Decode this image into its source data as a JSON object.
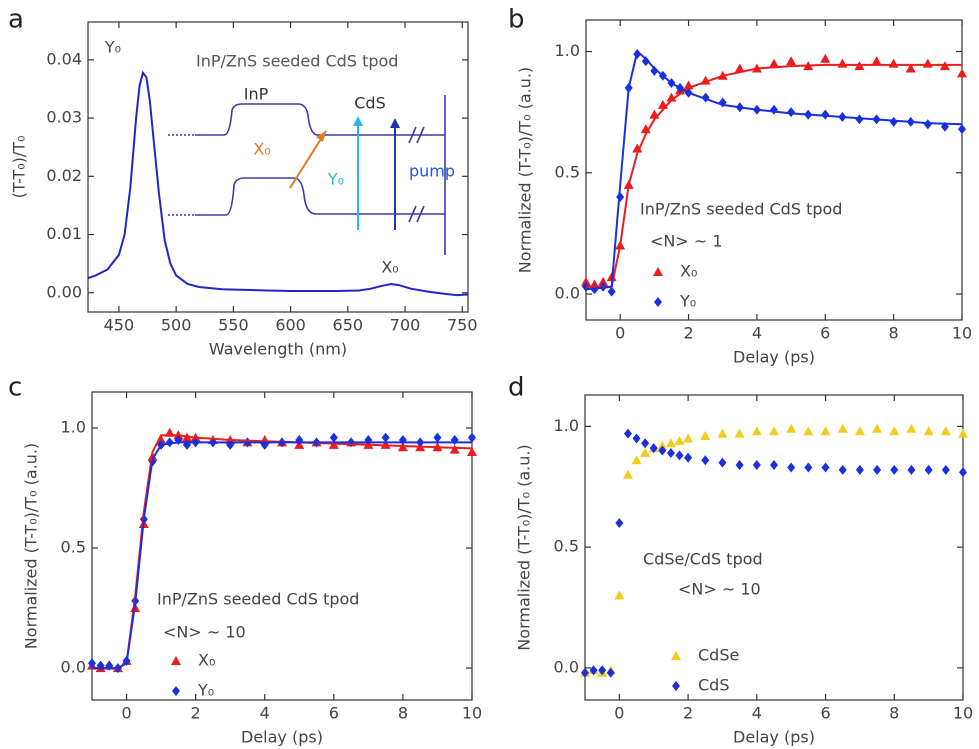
{
  "chart_data": [
    {
      "type": "line",
      "panel_label": "a",
      "x_label": "Wavelength (nm)",
      "y_label": "(T-T₀)/T₀",
      "annotations": [
        "Y₀",
        "X₀",
        "InP/ZnS seeded CdS tpod",
        "InP",
        "CdS",
        "X₀",
        "Y₀",
        "pump"
      ],
      "x": [
        423,
        430,
        440,
        450,
        455,
        460,
        465,
        468,
        471,
        474,
        477,
        480,
        485,
        490,
        495,
        500,
        510,
        520,
        540,
        560,
        580,
        600,
        620,
        640,
        660,
        670,
        680,
        688,
        695,
        705,
        720,
        735,
        745,
        755
      ],
      "series": [
        {
          "color": "#2323c8",
          "values": [
            0.0025,
            0.003,
            0.004,
            0.0065,
            0.01,
            0.018,
            0.03,
            0.0355,
            0.0378,
            0.037,
            0.033,
            0.027,
            0.017,
            0.009,
            0.005,
            0.003,
            0.0015,
            0.001,
            0.0006,
            0.0005,
            0.0004,
            0.0003,
            0.0003,
            0.0003,
            0.0004,
            0.0007,
            0.0012,
            0.0015,
            0.0013,
            0.0007,
            0.0002,
            -0.0002,
            -0.0004,
            -0.0003
          ]
        }
      ],
      "xlim": [
        423,
        755
      ],
      "ylim": [
        -0.0033,
        0.0465
      ],
      "xticks": [
        450,
        500,
        550,
        600,
        650,
        700,
        750
      ],
      "yticks": [
        {
          "value": 0,
          "label": "0.00"
        },
        {
          "value": 0.01,
          "label": "0.01"
        },
        {
          "value": 0.02,
          "label": "0.02"
        },
        {
          "value": 0.03,
          "label": "0.03"
        },
        {
          "value": 0.04,
          "label": "0.04"
        }
      ]
    },
    {
      "type": "scatter",
      "panel_label": "b",
      "x_label": "Delay (ps)",
      "y_label": "Normalized (T-T₀)/T₀ (a.u.)",
      "annotations": [
        "InP/ZnS seeded CdS tpod",
        "<N> ~ 1"
      ],
      "x": [
        -1,
        -0.75,
        -0.5,
        -0.25,
        0,
        0.25,
        0.5,
        0.75,
        1,
        1.25,
        1.5,
        1.75,
        2,
        2.5,
        3,
        3.5,
        4,
        4.5,
        5,
        5.5,
        6,
        6.5,
        7,
        7.5,
        8,
        8.5,
        9,
        9.5,
        10
      ],
      "series": [
        {
          "name": "X₀",
          "color": "#ee1c1c",
          "marker": "triangle",
          "values": [
            0.05,
            0.04,
            0.05,
            0.07,
            0.2,
            0.45,
            0.6,
            0.68,
            0.74,
            0.78,
            0.81,
            0.84,
            0.86,
            0.88,
            0.9,
            0.93,
            0.93,
            0.95,
            0.96,
            0.94,
            0.97,
            0.95,
            0.94,
            0.96,
            0.95,
            0.93,
            0.95,
            0.94,
            0.91
          ]
        },
        {
          "name": "Y₀",
          "color": "#1a2fe0",
          "marker": "diamond",
          "values": [
            0.03,
            0.02,
            0.03,
            0.01,
            0.4,
            0.85,
            0.99,
            0.96,
            0.92,
            0.9,
            0.87,
            0.85,
            0.83,
            0.81,
            0.79,
            0.77,
            0.76,
            0.76,
            0.75,
            0.74,
            0.74,
            0.73,
            0.72,
            0.72,
            0.71,
            0.71,
            0.7,
            0.69,
            0.68
          ]
        }
      ],
      "fits": [
        {
          "color": "#ee1c1c",
          "x": [
            -1,
            -0.25,
            0,
            0.25,
            0.5,
            0.75,
            1,
            1.5,
            2,
            3,
            4,
            5,
            6,
            7,
            8,
            9,
            10
          ],
          "values": [
            0.03,
            0.03,
            0.2,
            0.45,
            0.58,
            0.66,
            0.72,
            0.8,
            0.85,
            0.9,
            0.93,
            0.94,
            0.945,
            0.945,
            0.945,
            0.945,
            0.945
          ]
        },
        {
          "color": "#1a2fe0",
          "x": [
            -1,
            -0.25,
            0,
            0.25,
            0.5,
            0.75,
            1,
            1.5,
            2,
            3,
            4,
            5,
            6,
            7,
            8,
            9,
            10
          ],
          "values": [
            0.02,
            0.03,
            0.45,
            0.85,
            1.0,
            0.97,
            0.93,
            0.87,
            0.83,
            0.78,
            0.76,
            0.745,
            0.735,
            0.725,
            0.715,
            0.705,
            0.7
          ]
        }
      ],
      "xlim": [
        -1,
        10
      ],
      "ylim": [
        -0.107,
        1.13
      ],
      "xticks": [
        0,
        2,
        4,
        6,
        8,
        10
      ],
      "yticks": [
        {
          "value": 0,
          "label": "0.0"
        },
        {
          "value": 0.5,
          "label": "0.5"
        },
        {
          "value": 1,
          "label": "1.0"
        }
      ]
    },
    {
      "type": "scatter",
      "panel_label": "c",
      "x_label": "Delay (ps)",
      "y_label": "Normalized (T-T₀)/T₀ (a.u.)",
      "annotations": [
        "InP/ZnS seeded CdS tpod",
        "<N> ~ 10"
      ],
      "x": [
        -1,
        -0.75,
        -0.5,
        -0.25,
        0,
        0.25,
        0.5,
        0.75,
        1,
        1.25,
        1.5,
        1.75,
        2,
        2.5,
        3,
        3.5,
        4,
        4.5,
        5,
        5.5,
        6,
        6.5,
        7,
        7.5,
        8,
        8.5,
        9,
        9.5,
        10
      ],
      "series": [
        {
          "name": "X₀",
          "color": "#ee1c1c",
          "marker": "triangle",
          "values": [
            0.01,
            0,
            0.01,
            0,
            0.03,
            0.25,
            0.6,
            0.88,
            0.95,
            0.98,
            0.97,
            0.96,
            0.96,
            0.95,
            0.95,
            0.94,
            0.95,
            0.94,
            0.93,
            0.94,
            0.93,
            0.94,
            0.93,
            0.93,
            0.92,
            0.92,
            0.92,
            0.91,
            0.9
          ]
        },
        {
          "name": "Y₀",
          "color": "#1a2fe0",
          "marker": "diamond",
          "values": [
            0.02,
            0.01,
            0.01,
            0,
            0.03,
            0.28,
            0.62,
            0.86,
            0.93,
            0.94,
            0.95,
            0.93,
            0.94,
            0.94,
            0.93,
            0.94,
            0.93,
            0.94,
            0.95,
            0.94,
            0.96,
            0.94,
            0.95,
            0.96,
            0.95,
            0.94,
            0.96,
            0.95,
            0.96
          ]
        }
      ],
      "fits": [
        {
          "color": "#ee1c1c",
          "x": [
            -1,
            -0.25,
            0,
            0.25,
            0.5,
            0.75,
            1,
            1.5,
            2,
            3,
            4,
            5,
            6,
            7,
            8,
            9,
            10
          ],
          "values": [
            0,
            0,
            0.02,
            0.3,
            0.65,
            0.9,
            0.97,
            0.97,
            0.96,
            0.95,
            0.945,
            0.94,
            0.935,
            0.93,
            0.925,
            0.92,
            0.915
          ]
        },
        {
          "color": "#1a2fe0",
          "x": [
            -1,
            -0.25,
            0,
            0.25,
            0.5,
            0.75,
            1,
            1.5,
            2,
            3,
            4,
            5,
            6,
            7,
            8,
            9,
            10
          ],
          "values": [
            0,
            0,
            0.02,
            0.27,
            0.62,
            0.87,
            0.93,
            0.94,
            0.94,
            0.94,
            0.94,
            0.94,
            0.94,
            0.94,
            0.94,
            0.94,
            0.94
          ]
        }
      ],
      "xlim": [
        -1,
        10
      ],
      "ylim": [
        -0.133,
        1.15
      ],
      "xticks": [
        0,
        2,
        4,
        6,
        8,
        10
      ],
      "yticks": [
        {
          "value": 0,
          "label": "0.0"
        },
        {
          "value": 0.5,
          "label": "0.5"
        },
        {
          "value": 1,
          "label": "1.0"
        }
      ]
    },
    {
      "type": "scatter",
      "panel_label": "d",
      "x_label": "Delay (ps)",
      "y_label": "Normalized (T-T₀)/T₀ (a.u.)",
      "annotations": [
        "CdSe/CdS tpod",
        "<N> ~ 10"
      ],
      "x": [
        -1,
        -0.75,
        -0.5,
        -0.25,
        0,
        0.25,
        0.5,
        0.75,
        1,
        1.25,
        1.5,
        1.75,
        2,
        2.5,
        3,
        3.5,
        4,
        4.5,
        5,
        5.5,
        6,
        6.5,
        7,
        7.5,
        8,
        8.5,
        9,
        9.5,
        10
      ],
      "series": [
        {
          "name": "CdSe",
          "color": "#f5cc1e",
          "marker": "triangle",
          "values": [
            -0.02,
            -0.01,
            -0.02,
            -0.01,
            0.3,
            0.8,
            0.86,
            0.89,
            0.91,
            0.92,
            0.93,
            0.94,
            0.95,
            0.96,
            0.97,
            0.97,
            0.98,
            0.98,
            0.99,
            0.98,
            0.98,
            0.99,
            0.98,
            0.99,
            0.98,
            0.99,
            0.98,
            0.98,
            0.97
          ]
        },
        {
          "name": "CdS",
          "color": "#1a2fe0",
          "marker": "diamond",
          "values": [
            -0.02,
            -0.01,
            -0.01,
            -0.02,
            0.6,
            0.97,
            0.95,
            0.93,
            0.91,
            0.9,
            0.89,
            0.88,
            0.87,
            0.86,
            0.85,
            0.84,
            0.84,
            0.84,
            0.83,
            0.83,
            0.83,
            0.82,
            0.82,
            0.82,
            0.82,
            0.82,
            0.82,
            0.82,
            0.81
          ]
        }
      ],
      "xlim": [
        -1,
        10
      ],
      "ylim": [
        -0.133,
        1.13
      ],
      "xticks": [
        0,
        2,
        4,
        6,
        8,
        10
      ],
      "yticks": [
        {
          "value": 0,
          "label": "0.0"
        },
        {
          "value": 0.5,
          "label": "0.5"
        },
        {
          "value": 1,
          "label": "1.0"
        }
      ]
    }
  ]
}
